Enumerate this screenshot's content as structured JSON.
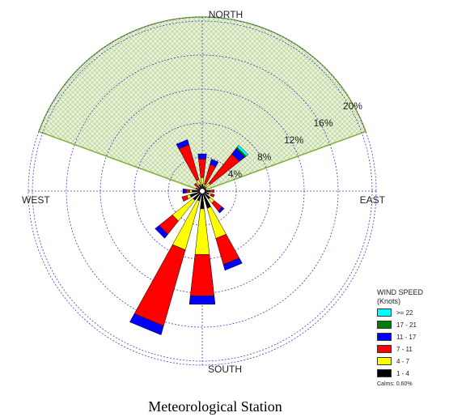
{
  "chart_data": {
    "type": "wind-rose",
    "directions": [
      "N",
      "NNE",
      "NE",
      "ENE",
      "E",
      "ESE",
      "SE",
      "SSE",
      "S",
      "SSW",
      "SW",
      "WSW",
      "W",
      "WNW",
      "NW",
      "NNW"
    ],
    "rings": [
      "4%",
      "8%",
      "12%",
      "16%",
      "20%"
    ],
    "ring_values": [
      4,
      8,
      12,
      16,
      20
    ],
    "cardinal_labels": {
      "north": "NORTH",
      "south": "SOUTH",
      "east": "EAST",
      "west": "WEST"
    },
    "speed_bins": [
      "1 - 4",
      "4 - 7",
      "7 - 11",
      "11 - 17",
      "17 - 21",
      ">= 22"
    ],
    "bin_colors": [
      "#000000",
      "#ffff00",
      "#ff0000",
      "#0000ff",
      "#008000",
      "#00ffff"
    ],
    "frequencies_percent": {
      "N": [
        0.8,
        0.8,
        2.2,
        0.6,
        0,
        0
      ],
      "NNE": [
        0.6,
        0.3,
        2.4,
        0.6,
        0,
        0
      ],
      "NE": [
        0.6,
        0.6,
        4.4,
        0.8,
        0.2,
        0.3
      ],
      "ENE": [
        0.3,
        0,
        0.2,
        0,
        0,
        0
      ],
      "E": [
        0.9,
        0,
        0.5,
        0,
        0,
        0
      ],
      "ESE": [
        0.8,
        0.3,
        0.4,
        0,
        0,
        0
      ],
      "SE": [
        1.2,
        0.6,
        1.2,
        0.3,
        0,
        0
      ],
      "SSE": [
        2.1,
        3.7,
        3.2,
        0.7,
        0,
        0
      ],
      "S": [
        2.1,
        5.4,
        4.9,
        1.0,
        0,
        0
      ],
      "SSW": [
        1.2,
        6.0,
        9.3,
        1.1,
        0,
        0
      ],
      "SW": [
        1.4,
        3.1,
        2.0,
        0.6,
        0,
        0
      ],
      "WSW": [
        1.5,
        0.4,
        0.6,
        0,
        0,
        0
      ],
      "W": [
        1.2,
        0.3,
        0.4,
        0.4,
        0,
        0
      ],
      "WNW": [
        0.5,
        0,
        0.3,
        0,
        0,
        0
      ],
      "NW": [
        0.6,
        0,
        0.6,
        0,
        0,
        0
      ],
      "NNW": [
        0.8,
        0.6,
        4.3,
        0.6,
        0,
        0
      ]
    },
    "highlight_sector_degrees": [
      -70,
      70
    ],
    "highlight_color": "#7fb03b"
  },
  "legend": {
    "title_line1": "WIND SPEED",
    "title_line2": "(Knots)",
    "items": [
      {
        "label": ">= 22",
        "color": "#00ffff"
      },
      {
        "label": "17 - 21",
        "color": "#008000"
      },
      {
        "label": "11 - 17",
        "color": "#0000ff"
      },
      {
        "label": "7 - 11",
        "color": "#ff0000"
      },
      {
        "label": "4 - 7",
        "color": "#ffff00"
      },
      {
        "label": "1 - 4",
        "color": "#000000"
      }
    ],
    "calms": "Calms: 0.60%"
  },
  "station_label": "Meteorological Station"
}
